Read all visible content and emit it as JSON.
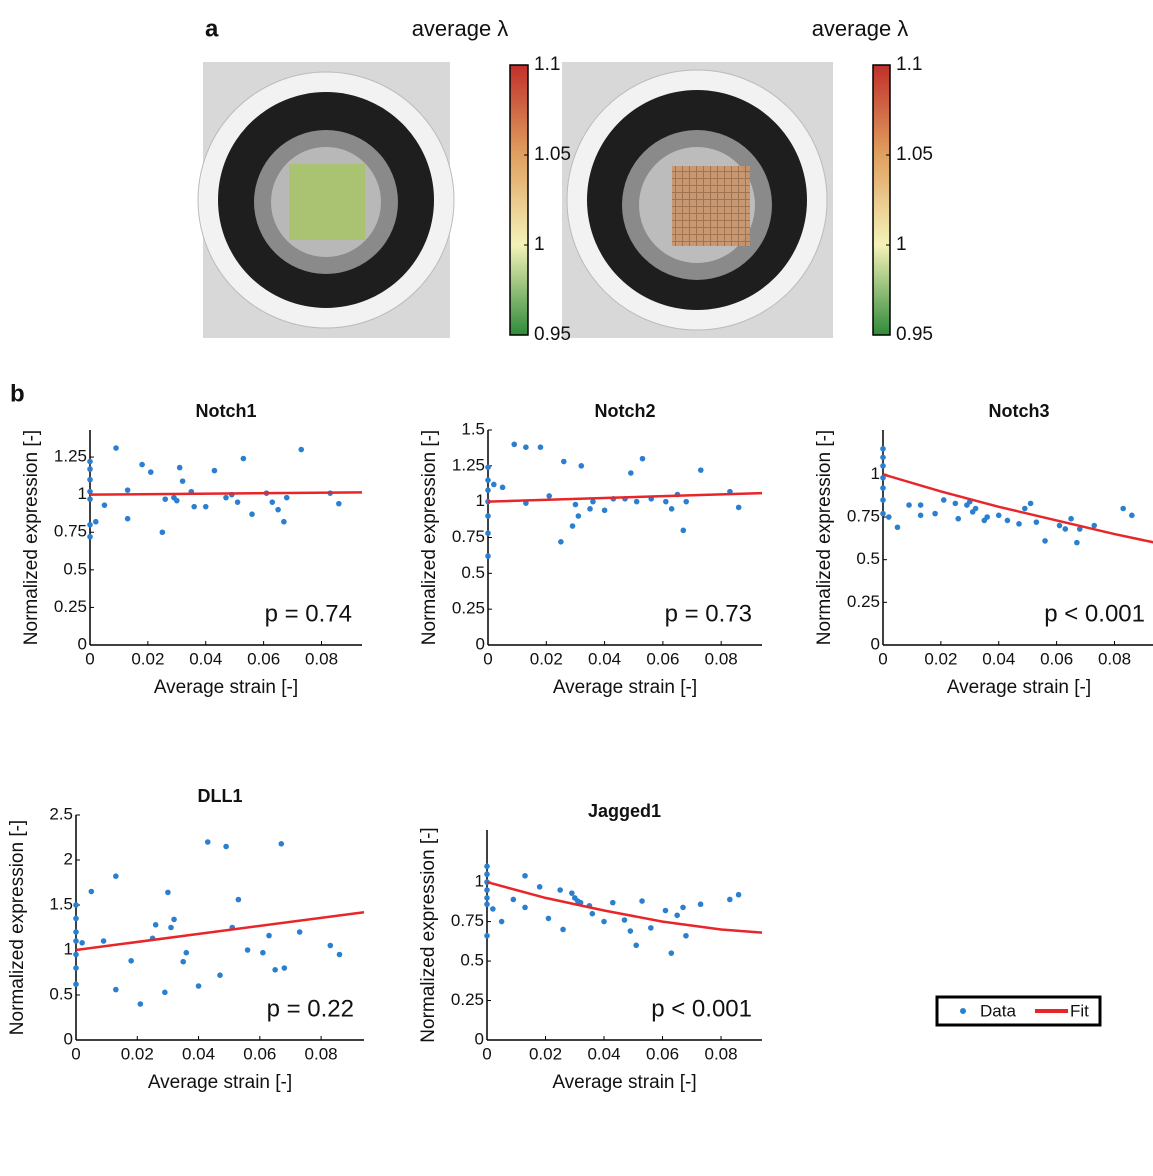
{
  "panel_labels": [
    "a",
    "b"
  ],
  "chart_data": [
    {
      "type": "colorbar",
      "title": "average λ",
      "ylim": [
        0.95,
        1.1
      ],
      "yticks": [
        0.95,
        1,
        1.05,
        1.1
      ],
      "colormap": [
        "#2f8a3a",
        "#f4f2b8",
        "#e0a060",
        "#c0302a"
      ]
    },
    {
      "type": "colorbar",
      "title": "average λ",
      "ylim": [
        0.95,
        1.1
      ],
      "yticks": [
        0.95,
        1,
        1.05,
        1.1
      ],
      "colormap": [
        "#2f8a3a",
        "#f4f2b8",
        "#e0a060",
        "#c0302a"
      ]
    },
    {
      "type": "scatter",
      "title": "Notch1",
      "xlabel": "Average strain [-]",
      "ylabel": "Normalized expression [-]",
      "annotation": "p = 0.74",
      "xlim": [
        0,
        0.094
      ],
      "xticks": [
        0,
        0.02,
        0.04,
        0.06,
        0.08
      ],
      "ylim": [
        0,
        1.43
      ],
      "yticks": [
        0,
        0.25,
        0.5,
        0.75,
        1,
        1.25
      ],
      "series": [
        {
          "color": "#2a7fd0",
          "x": [
            0,
            0,
            0,
            0,
            0,
            0,
            0,
            0.002,
            0.005,
            0.009,
            0.013,
            0.013,
            0.018,
            0.021,
            0.025,
            0.026,
            0.029,
            0.03,
            0.031,
            0.032,
            0.035,
            0.036,
            0.04,
            0.043,
            0.047,
            0.049,
            0.051,
            0.053,
            0.056,
            0.061,
            0.063,
            0.065,
            0.067,
            0.068,
            0.073,
            0.083,
            0.086
          ],
          "values": [
            1.22,
            1.17,
            1.1,
            1.02,
            0.97,
            0.8,
            0.72,
            0.82,
            0.93,
            1.31,
            1.03,
            0.84,
            1.2,
            1.15,
            0.75,
            0.97,
            0.98,
            0.96,
            1.18,
            1.09,
            1.02,
            0.92,
            0.92,
            1.16,
            0.98,
            1.0,
            0.95,
            1.24,
            0.87,
            1.01,
            0.95,
            0.9,
            0.82,
            0.98,
            1.3,
            1.01,
            0.94
          ]
        },
        {
          "color": "#e8262a",
          "x": [
            0,
            0.094
          ],
          "values": [
            1.0,
            1.015
          ]
        }
      ]
    },
    {
      "type": "scatter",
      "title": "Notch2",
      "xlabel": "Average strain [-]",
      "ylabel": "Normalized expression [-]",
      "annotation": "p = 0.73",
      "xlim": [
        0,
        0.094
      ],
      "xticks": [
        0,
        0.02,
        0.04,
        0.06,
        0.08
      ],
      "ylim": [
        0,
        1.5
      ],
      "yticks": [
        0,
        0.25,
        0.5,
        0.75,
        1,
        1.25,
        1.5
      ],
      "series": [
        {
          "color": "#2a7fd0",
          "x": [
            0,
            0,
            0,
            0,
            0,
            0,
            0,
            0.002,
            0.005,
            0.009,
            0.013,
            0.013,
            0.018,
            0.021,
            0.025,
            0.026,
            0.029,
            0.03,
            0.031,
            0.032,
            0.035,
            0.036,
            0.04,
            0.043,
            0.047,
            0.049,
            0.051,
            0.053,
            0.056,
            0.061,
            0.063,
            0.065,
            0.067,
            0.068,
            0.073,
            0.083,
            0.086
          ],
          "values": [
            1.24,
            1.15,
            1.08,
            1.0,
            0.9,
            0.78,
            0.62,
            1.12,
            1.1,
            1.4,
            1.38,
            0.99,
            1.38,
            1.04,
            0.72,
            1.28,
            0.83,
            0.98,
            0.9,
            1.25,
            0.95,
            1.0,
            0.94,
            1.02,
            1.02,
            1.2,
            1.0,
            1.3,
            1.02,
            1.0,
            0.95,
            1.05,
            0.8,
            1.0,
            1.22,
            1.07,
            0.96
          ]
        },
        {
          "color": "#e8262a",
          "x": [
            0,
            0.094
          ],
          "values": [
            1.0,
            1.06
          ]
        }
      ]
    },
    {
      "type": "scatter",
      "title": "Notch3",
      "xlabel": "Average strain [-]",
      "ylabel": "Normalized expression [-]",
      "annotation": "p < 0.001",
      "xlim": [
        0,
        0.094
      ],
      "xticks": [
        0,
        0.02,
        0.04,
        0.06,
        0.08
      ],
      "ylim": [
        0,
        1.26
      ],
      "yticks": [
        0,
        0.25,
        0.5,
        0.75,
        1
      ],
      "series": [
        {
          "color": "#2a7fd0",
          "x": [
            0,
            0,
            0,
            0,
            0,
            0,
            0,
            0.002,
            0.005,
            0.009,
            0.013,
            0.013,
            0.018,
            0.021,
            0.025,
            0.026,
            0.029,
            0.03,
            0.031,
            0.032,
            0.035,
            0.036,
            0.04,
            0.043,
            0.047,
            0.049,
            0.051,
            0.053,
            0.056,
            0.061,
            0.063,
            0.065,
            0.067,
            0.068,
            0.073,
            0.083,
            0.086
          ],
          "values": [
            1.15,
            1.1,
            1.05,
            0.98,
            0.92,
            0.85,
            0.77,
            0.75,
            0.69,
            0.82,
            0.82,
            0.76,
            0.77,
            0.85,
            0.83,
            0.74,
            0.82,
            0.84,
            0.78,
            0.8,
            0.73,
            0.75,
            0.76,
            0.73,
            0.71,
            0.8,
            0.83,
            0.72,
            0.61,
            0.7,
            0.68,
            0.74,
            0.6,
            0.68,
            0.7,
            0.8,
            0.76
          ]
        },
        {
          "color": "#e8262a",
          "x": [
            0,
            0.02,
            0.04,
            0.06,
            0.08,
            0.094
          ],
          "values": [
            1.0,
            0.9,
            0.81,
            0.73,
            0.65,
            0.6
          ]
        }
      ]
    },
    {
      "type": "scatter",
      "title": "DLL1",
      "xlabel": "Average strain [-]",
      "ylabel": "Normalized expression [-]",
      "annotation": "p = 0.22",
      "xlim": [
        0,
        0.094
      ],
      "xticks": [
        0,
        0.02,
        0.04,
        0.06,
        0.08
      ],
      "ylim": [
        0,
        2.5
      ],
      "yticks": [
        0,
        0.5,
        1,
        1.5,
        2,
        2.5
      ],
      "series": [
        {
          "color": "#2a7fd0",
          "x": [
            0,
            0,
            0,
            0,
            0,
            0,
            0,
            0.002,
            0.005,
            0.009,
            0.013,
            0.013,
            0.018,
            0.021,
            0.025,
            0.026,
            0.029,
            0.03,
            0.031,
            0.032,
            0.035,
            0.036,
            0.04,
            0.043,
            0.047,
            0.049,
            0.051,
            0.053,
            0.056,
            0.061,
            0.063,
            0.065,
            0.067,
            0.068,
            0.073,
            0.083,
            0.086
          ],
          "values": [
            1.5,
            1.35,
            1.2,
            1.1,
            0.95,
            0.8,
            0.62,
            1.08,
            1.65,
            1.1,
            1.82,
            0.56,
            0.88,
            0.4,
            1.13,
            1.28,
            0.53,
            1.64,
            1.25,
            1.34,
            0.87,
            0.97,
            0.6,
            2.2,
            0.72,
            2.15,
            1.25,
            1.56,
            1.0,
            0.97,
            1.16,
            0.78,
            2.18,
            0.8,
            1.2,
            1.05,
            0.95
          ]
        },
        {
          "color": "#e8262a",
          "x": [
            0,
            0.094
          ],
          "values": [
            1.0,
            1.42
          ]
        }
      ]
    },
    {
      "type": "scatter",
      "title": "Jagged1",
      "xlabel": "Average strain [-]",
      "ylabel": "Normalized expression [-]",
      "annotation": "p < 0.001",
      "xlim": [
        0,
        0.094
      ],
      "xticks": [
        0,
        0.02,
        0.04,
        0.06,
        0.08
      ],
      "ylim": [
        0,
        1.33
      ],
      "yticks": [
        0,
        0.25,
        0.5,
        0.75,
        1
      ],
      "series": [
        {
          "name": "Data",
          "color": "#2a7fd0",
          "x": [
            0,
            0,
            0,
            0,
            0,
            0,
            0,
            0.002,
            0.005,
            0.009,
            0.013,
            0.013,
            0.018,
            0.021,
            0.025,
            0.026,
            0.029,
            0.03,
            0.031,
            0.032,
            0.035,
            0.036,
            0.04,
            0.043,
            0.047,
            0.049,
            0.051,
            0.053,
            0.056,
            0.061,
            0.063,
            0.065,
            0.067,
            0.068,
            0.073,
            0.083,
            0.086
          ],
          "values": [
            1.1,
            1.05,
            1.0,
            0.95,
            0.9,
            0.86,
            0.66,
            0.83,
            0.75,
            0.89,
            1.04,
            0.84,
            0.97,
            0.77,
            0.95,
            0.7,
            0.93,
            0.9,
            0.88,
            0.87,
            0.85,
            0.8,
            0.75,
            0.87,
            0.76,
            0.69,
            0.6,
            0.88,
            0.71,
            0.82,
            0.55,
            0.79,
            0.84,
            0.66,
            0.86,
            0.89,
            0.92
          ]
        },
        {
          "name": "Fit",
          "color": "#e8262a",
          "x": [
            0,
            0.02,
            0.04,
            0.06,
            0.08,
            0.094
          ],
          "values": [
            1.0,
            0.9,
            0.82,
            0.75,
            0.7,
            0.68
          ]
        }
      ]
    }
  ]
}
